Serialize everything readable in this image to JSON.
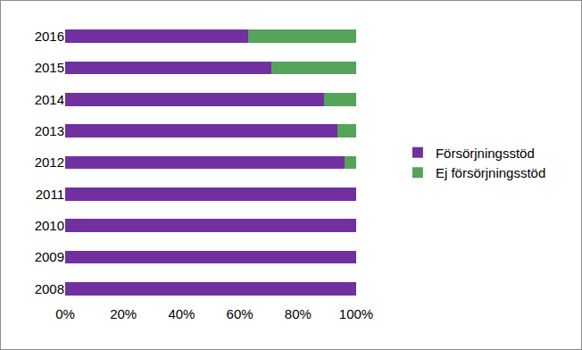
{
  "chart_data": {
    "type": "bar",
    "orientation": "horizontal",
    "stacked": true,
    "categories": [
      "2008",
      "2009",
      "2010",
      "2011",
      "2012",
      "2013",
      "2014",
      "2015",
      "2016"
    ],
    "series": [
      {
        "name": "Försörjningsstöd",
        "color": "#7030a0",
        "values": [
          100,
          100,
          100,
          100,
          96,
          93.5,
          89,
          71,
          63
        ]
      },
      {
        "name": "Ej försörjningsstöd",
        "color": "#56a45a",
        "values": [
          0,
          0,
          0,
          0,
          4,
          6.5,
          11,
          29,
          37
        ]
      }
    ],
    "xlim": [
      0,
      100
    ],
    "xticks": [
      {
        "value": 0,
        "label": "0%"
      },
      {
        "value": 20,
        "label": "20%"
      },
      {
        "value": 40,
        "label": "40%"
      },
      {
        "value": 60,
        "label": "60%"
      },
      {
        "value": 80,
        "label": "80%"
      },
      {
        "value": 100,
        "label": "100%"
      }
    ],
    "grid": false,
    "legend": "right"
  }
}
